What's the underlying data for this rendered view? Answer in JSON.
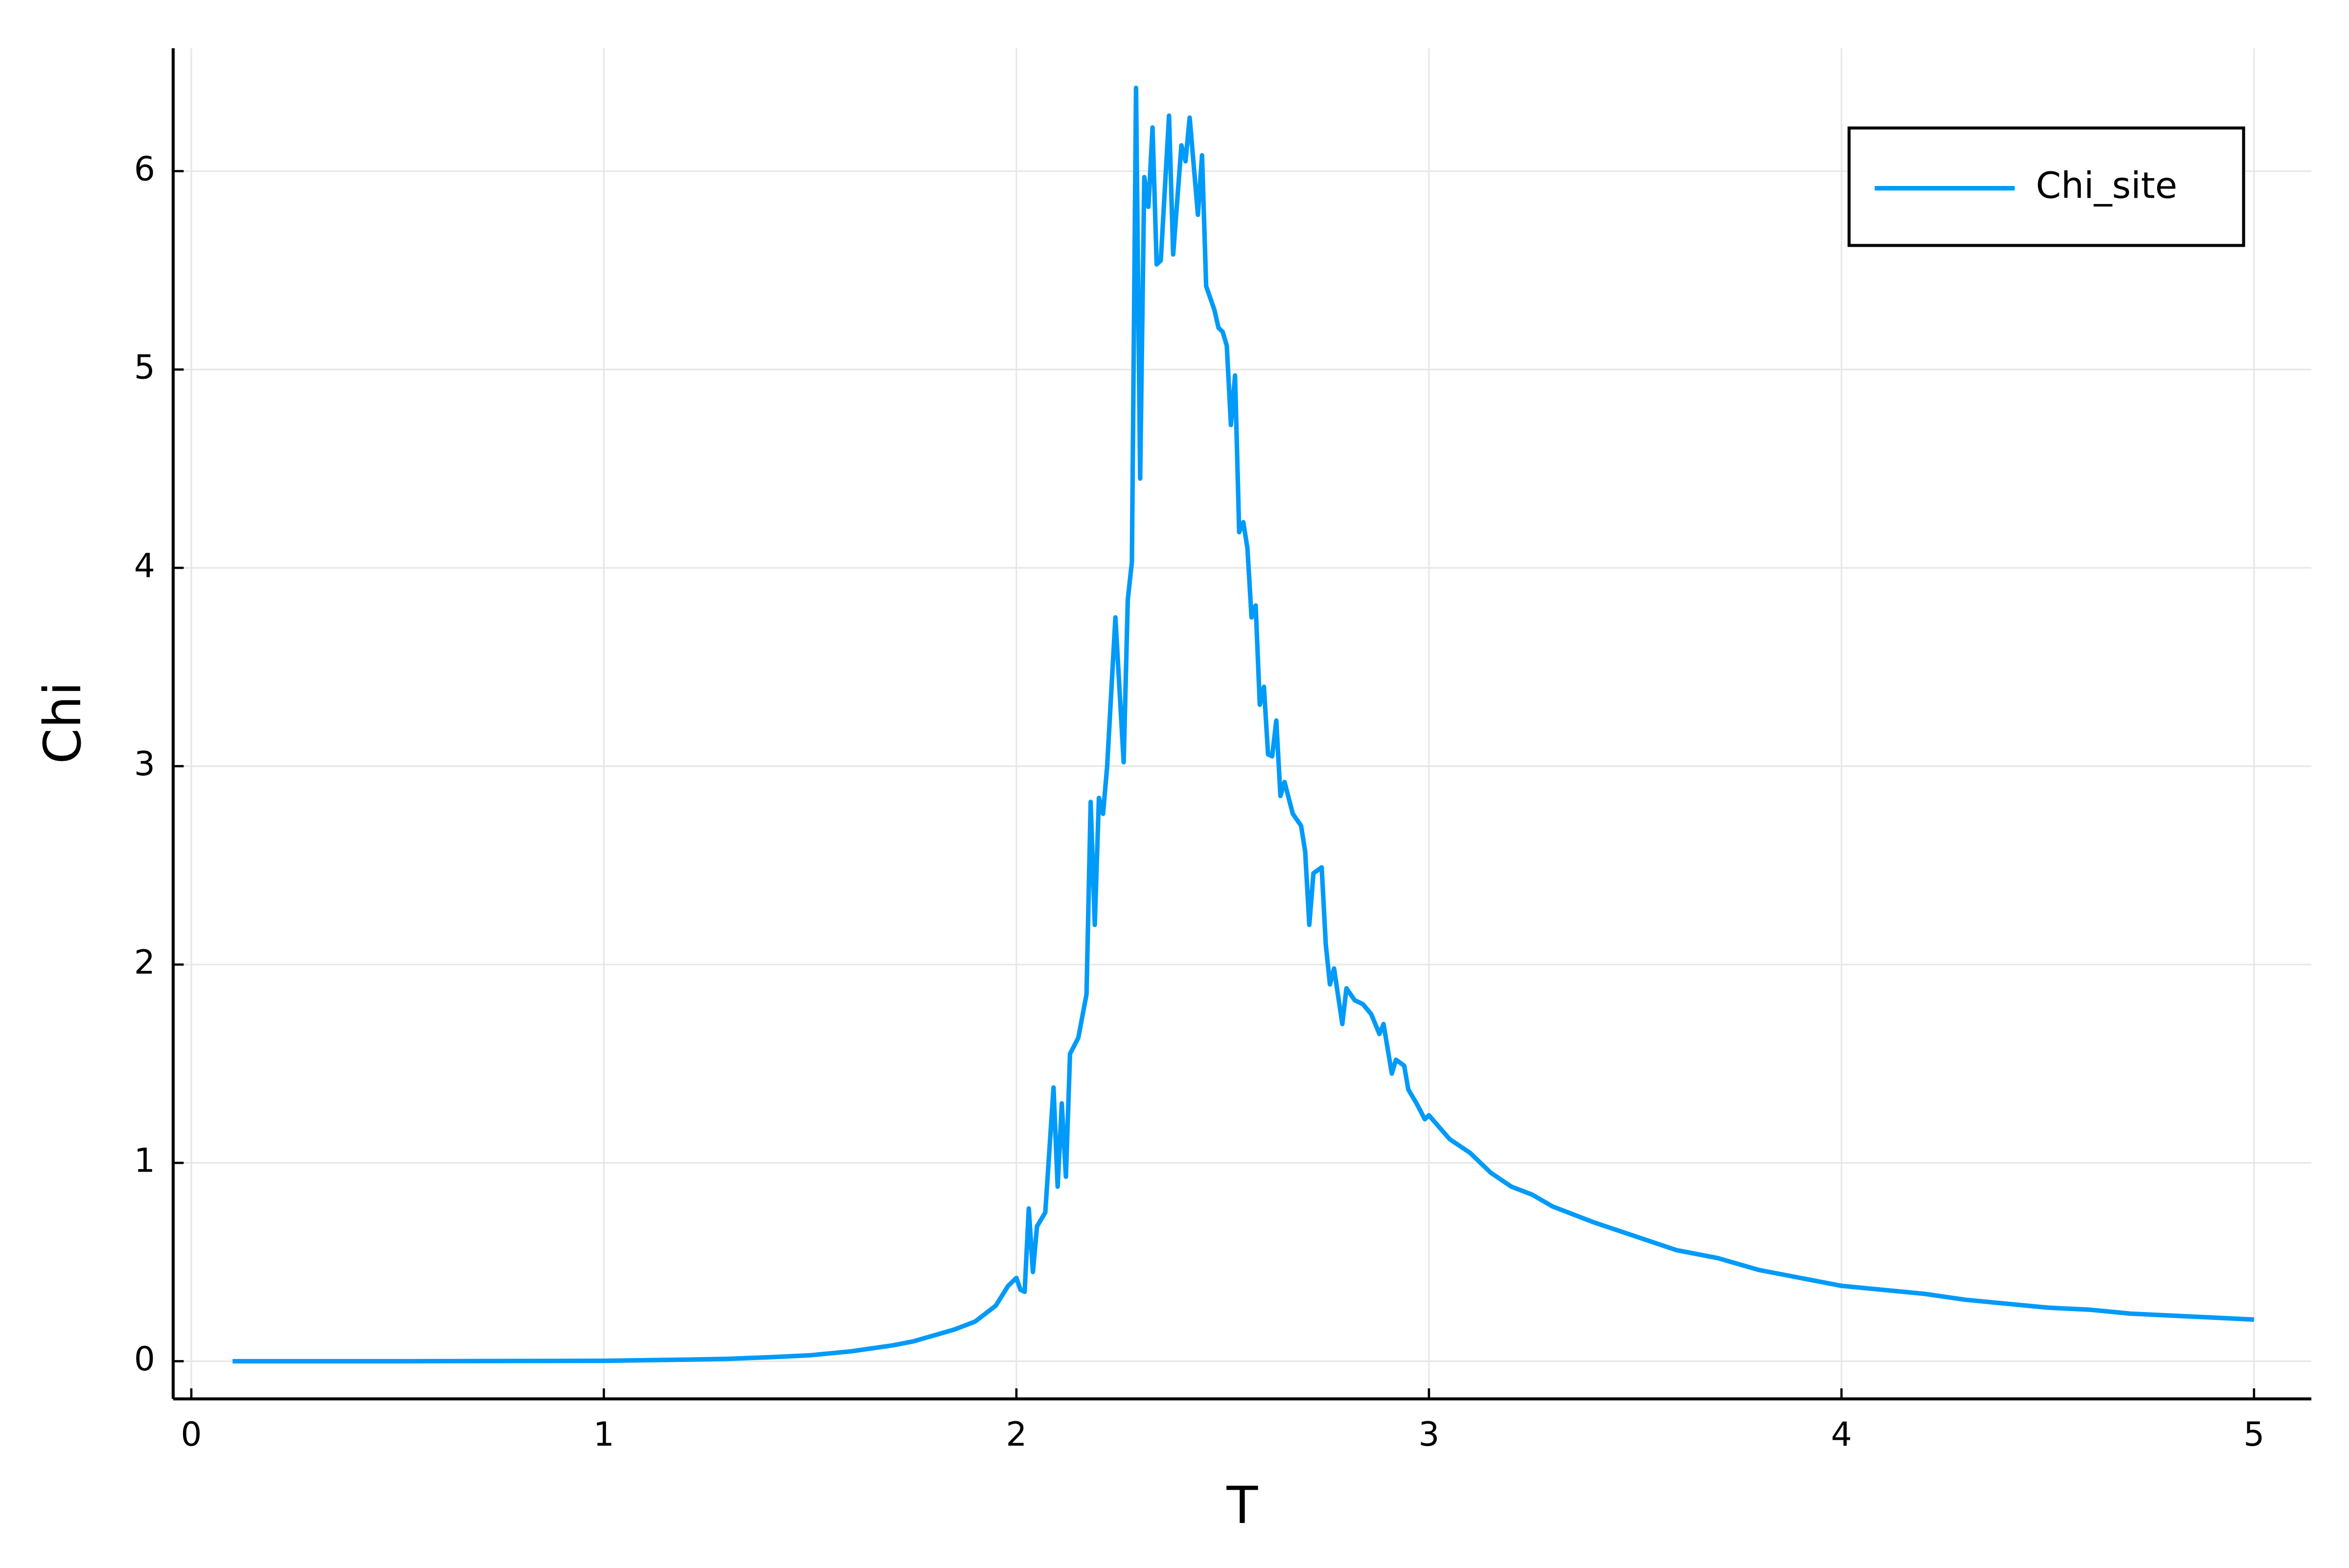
{
  "chart_data": {
    "type": "line",
    "xlabel": "T",
    "ylabel": "Chi",
    "xlim": [
      -0.044,
      5.139
    ],
    "ylim": [
      -0.19,
      6.62
    ],
    "xticks": [
      0,
      1,
      2,
      3,
      4,
      5
    ],
    "yticks": [
      0,
      1,
      2,
      3,
      4,
      5,
      6
    ],
    "grid": true,
    "legend": "top-right",
    "x": [
      0.1,
      0.5,
      1.0,
      1.2,
      1.3,
      1.4,
      1.5,
      1.6,
      1.7,
      1.75,
      1.8,
      1.85,
      1.9,
      1.95,
      1.98,
      2.0,
      2.01,
      2.02,
      2.03,
      2.04,
      2.05,
      2.07,
      2.09,
      2.1,
      2.11,
      2.12,
      2.13,
      2.15,
      2.17,
      2.18,
      2.19,
      2.2,
      2.21,
      2.22,
      2.24,
      2.26,
      2.27,
      2.28,
      2.29,
      2.3,
      2.31,
      2.32,
      2.33,
      2.34,
      2.35,
      2.37,
      2.38,
      2.4,
      2.41,
      2.42,
      2.44,
      2.45,
      2.46,
      2.48,
      2.49,
      2.5,
      2.51,
      2.52,
      2.53,
      2.54,
      2.55,
      2.56,
      2.57,
      2.58,
      2.59,
      2.6,
      2.61,
      2.62,
      2.63,
      2.64,
      2.65,
      2.67,
      2.69,
      2.7,
      2.71,
      2.72,
      2.74,
      2.75,
      2.76,
      2.77,
      2.79,
      2.8,
      2.82,
      2.84,
      2.86,
      2.88,
      2.89,
      2.91,
      2.92,
      2.94,
      2.95,
      2.97,
      2.99,
      3.0,
      3.05,
      3.1,
      3.15,
      3.2,
      3.25,
      3.3,
      3.4,
      3.5,
      3.6,
      3.7,
      3.8,
      3.9,
      4.0,
      4.1,
      4.2,
      4.3,
      4.4,
      4.5,
      4.6,
      4.7,
      4.8,
      4.9,
      5.0
    ],
    "series": [
      {
        "name": "Chi_site",
        "color": "#009af9",
        "values": [
          0,
          0,
          0.002,
          0.008,
          0.012,
          0.02,
          0.03,
          0.05,
          0.08,
          0.1,
          0.13,
          0.16,
          0.2,
          0.28,
          0.38,
          0.42,
          0.36,
          0.35,
          0.77,
          0.45,
          0.68,
          0.75,
          1.38,
          0.88,
          1.3,
          0.93,
          1.55,
          1.63,
          1.85,
          2.82,
          2.2,
          2.84,
          2.76,
          3.0,
          3.75,
          3.02,
          3.84,
          4.03,
          6.42,
          4.45,
          5.97,
          5.82,
          6.22,
          5.53,
          5.55,
          6.28,
          5.58,
          6.13,
          6.05,
          6.27,
          5.78,
          6.08,
          5.42,
          5.3,
          5.21,
          5.19,
          5.12,
          4.72,
          4.97,
          4.18,
          4.23,
          4.1,
          3.75,
          3.81,
          3.31,
          3.4,
          3.06,
          3.05,
          3.23,
          2.85,
          2.92,
          2.76,
          2.7,
          2.57,
          2.2,
          2.46,
          2.49,
          2.1,
          1.9,
          1.98,
          1.7,
          1.88,
          1.82,
          1.8,
          1.75,
          1.65,
          1.7,
          1.45,
          1.52,
          1.49,
          1.37,
          1.3,
          1.22,
          1.24,
          1.12,
          1.05,
          0.95,
          0.88,
          0.84,
          0.78,
          0.7,
          0.63,
          0.56,
          0.52,
          0.46,
          0.42,
          0.38,
          0.36,
          0.34,
          0.31,
          0.29,
          0.27,
          0.26,
          0.24,
          0.23,
          0.22,
          0.21
        ]
      }
    ]
  }
}
